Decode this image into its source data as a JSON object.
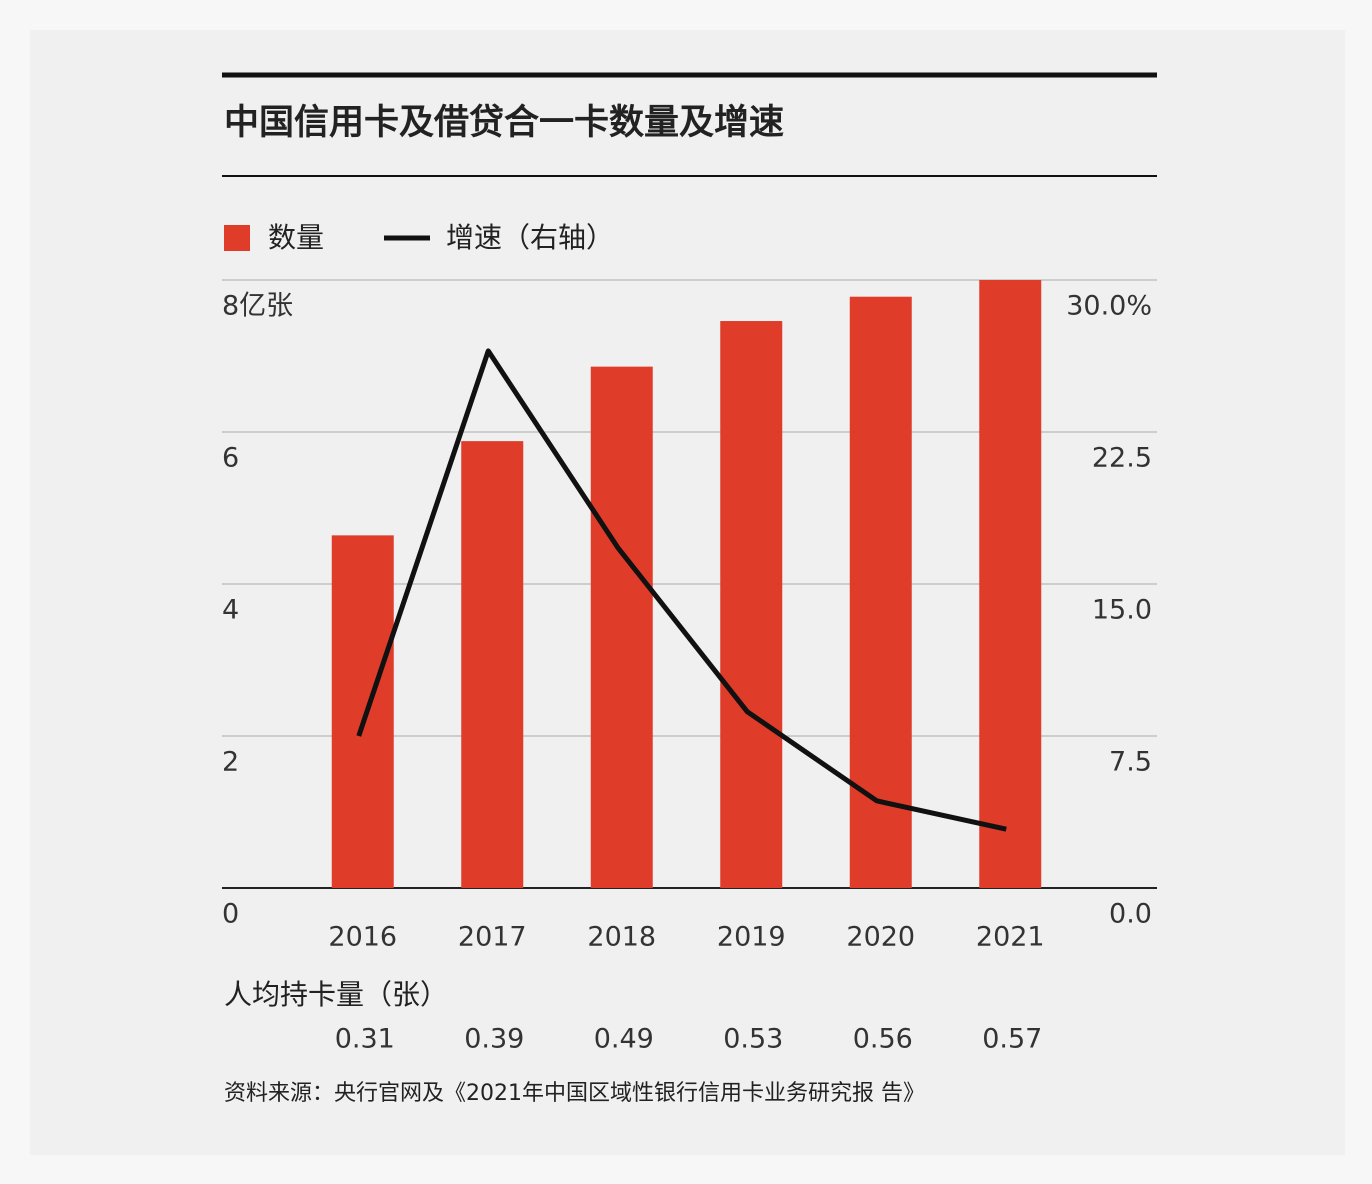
{
  "chart_data": {
    "type": "bar",
    "title": "中国信用卡及借贷合一卡数量及增速",
    "categories": [
      "2016",
      "2017",
      "2018",
      "2019",
      "2020",
      "2021"
    ],
    "series": [
      {
        "name": "数量",
        "type": "bar",
        "color": "#e03c2a",
        "values": [
          4.64,
          5.88,
          6.86,
          7.46,
          7.78,
          8.0
        ]
      },
      {
        "name": "增速（右轴）",
        "type": "line",
        "axis": "y2",
        "color": "#111111",
        "values": [
          7.5,
          26.5,
          16.8,
          8.7,
          4.3,
          2.9
        ]
      }
    ],
    "ylim": [
      0,
      8
    ],
    "yticks": [
      0,
      2,
      4,
      6,
      {
        "value": 8,
        "label": "8亿张"
      }
    ],
    "y2lim": [
      0,
      30
    ],
    "y2ticks": [
      {
        "value": 0,
        "label": "0.0"
      },
      7.5,
      {
        "value": 15,
        "label": "15.0"
      },
      22.5,
      {
        "value": 30,
        "label": "30.0%"
      }
    ],
    "grid": true,
    "legend": "top-left",
    "per_capita": {
      "label": "人均持卡量（张）",
      "values": [
        "0.31",
        "0.39",
        "0.49",
        "0.53",
        "0.56",
        "0.57"
      ]
    },
    "source": "资料来源：央行官网及《2021年中国区域性银行信用卡业务研究报 告》"
  }
}
